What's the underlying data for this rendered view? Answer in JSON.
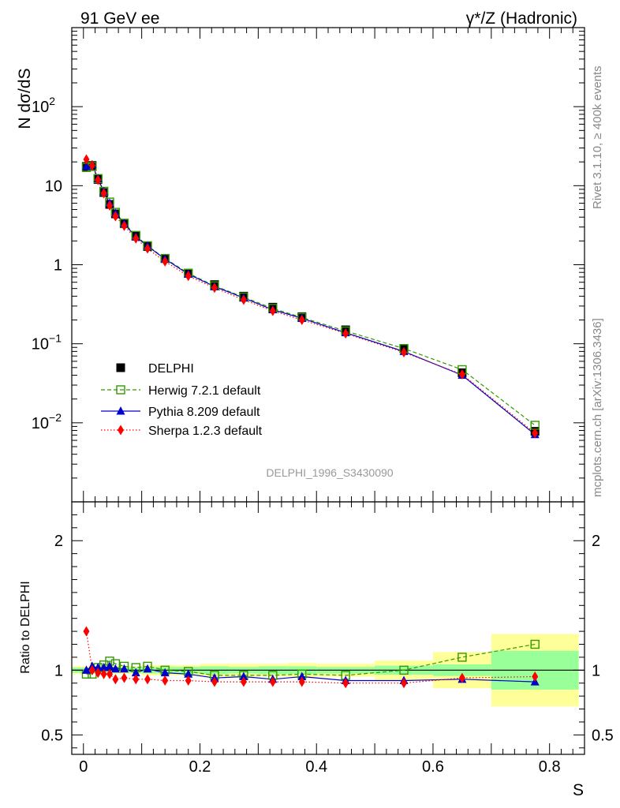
{
  "header": {
    "left": "91 GeV ee",
    "right": "γ*/Z (Hadronic)"
  },
  "side_labels": {
    "rivet": "Rivet 3.1.10, ≥ 400k events",
    "mcplots": "mcplots.cern.ch [arXiv:1306.3436]"
  },
  "analysis_id": "DELPHI_1996_S3430090",
  "chart_data": [
    {
      "type": "scatter",
      "panel": "main",
      "ylabel": "N dσ/dS",
      "xlabel": "S",
      "xlim": [
        -0.02,
        0.86
      ],
      "ylim": [
        0.001,
        1000
      ],
      "yscale": "log",
      "yticks": [
        {
          "value": 0.01,
          "base": "10",
          "exp": "−2"
        },
        {
          "value": 0.1,
          "base": "10",
          "exp": "−1"
        },
        {
          "value": 1,
          "base": "1",
          "exp": ""
        },
        {
          "value": 10,
          "base": "10",
          "exp": ""
        },
        {
          "value": 100,
          "base": "10",
          "exp": "2"
        }
      ],
      "legend_position": "bottom-left",
      "x": [
        0.005,
        0.015,
        0.025,
        0.035,
        0.045,
        0.055,
        0.07,
        0.09,
        0.11,
        0.14,
        0.18,
        0.225,
        0.275,
        0.325,
        0.375,
        0.45,
        0.55,
        0.65,
        0.775
      ],
      "series": [
        {
          "name": "DELPHI",
          "style": "data",
          "color": "#000000",
          "values": [
            17.5,
            18.0,
            12.0,
            8.2,
            5.8,
            4.4,
            3.3,
            2.3,
            1.7,
            1.2,
            0.78,
            0.56,
            0.4,
            0.29,
            0.22,
            0.15,
            0.087,
            0.043,
            0.0078
          ]
        },
        {
          "name": "Herwig 7.2.1 default",
          "style": "open-square-dashed",
          "color": "#339900",
          "values": [
            17.0,
            17.5,
            12.3,
            8.5,
            6.2,
            4.6,
            3.35,
            2.35,
            1.74,
            1.2,
            0.78,
            0.54,
            0.39,
            0.28,
            0.215,
            0.145,
            0.087,
            0.047,
            0.0093
          ]
        },
        {
          "name": "Pythia 8.209 default",
          "style": "filled-triangle-solid",
          "color": "#0000cc",
          "values": [
            17.5,
            18.5,
            12.3,
            8.4,
            6.0,
            4.45,
            3.3,
            2.25,
            1.72,
            1.18,
            0.76,
            0.53,
            0.38,
            0.27,
            0.21,
            0.138,
            0.08,
            0.04,
            0.0071
          ]
        },
        {
          "name": "Sherpa 1.2.3 default",
          "style": "filled-diamond-dotted",
          "color": "#ff0000",
          "values": [
            21.5,
            18.0,
            11.8,
            8.0,
            5.6,
            4.1,
            3.1,
            2.15,
            1.6,
            1.1,
            0.72,
            0.51,
            0.36,
            0.26,
            0.2,
            0.135,
            0.078,
            0.041,
            0.0074
          ]
        }
      ]
    },
    {
      "type": "scatter",
      "panel": "ratio",
      "ylabel": "Ratio to DELPHI",
      "xlabel": "S",
      "xlim": [
        -0.02,
        0.86
      ],
      "ylim": [
        0.35,
        2.3
      ],
      "yticks": [
        0.5,
        1,
        2
      ],
      "xticks": [
        0,
        0.2,
        0.4,
        0.6,
        0.8
      ],
      "reference_line": 1,
      "uncertainty_bands": [
        {
          "x_from": -0.02,
          "x_to": 0.1,
          "green": 0.02,
          "yellow": 0.03
        },
        {
          "x_from": 0.1,
          "x_to": 0.2,
          "green": 0.025,
          "yellow": 0.04
        },
        {
          "x_from": 0.2,
          "x_to": 0.25,
          "green": 0.03,
          "yellow": 0.05
        },
        {
          "x_from": 0.25,
          "x_to": 0.3,
          "green": 0.025,
          "yellow": 0.05
        },
        {
          "x_from": 0.3,
          "x_to": 0.35,
          "green": 0.03,
          "yellow": 0.05
        },
        {
          "x_from": 0.35,
          "x_to": 0.4,
          "green": 0.03,
          "yellow": 0.055
        },
        {
          "x_from": 0.4,
          "x_to": 0.5,
          "green": 0.025,
          "yellow": 0.05
        },
        {
          "x_from": 0.5,
          "x_to": 0.6,
          "green": 0.035,
          "yellow": 0.075
        },
        {
          "x_from": 0.6,
          "x_to": 0.7,
          "green": 0.045,
          "yellow": 0.14
        },
        {
          "x_from": 0.7,
          "x_to": 0.85,
          "green": 0.15,
          "yellow": 0.28
        }
      ],
      "x": [
        0.005,
        0.015,
        0.025,
        0.035,
        0.045,
        0.055,
        0.07,
        0.09,
        0.11,
        0.14,
        0.18,
        0.225,
        0.275,
        0.325,
        0.375,
        0.45,
        0.55,
        0.65,
        0.775
      ],
      "series": [
        {
          "name": "Herwig 7.2.1 default",
          "style": "open-square-dashed",
          "color": "#339900",
          "values": [
            0.97,
            0.97,
            1.02,
            1.04,
            1.07,
            1.05,
            1.03,
            1.02,
            1.03,
            1.0,
            0.99,
            0.96,
            0.96,
            0.96,
            0.97,
            0.96,
            1.0,
            1.1,
            1.2
          ]
        },
        {
          "name": "Pythia 8.209 default",
          "style": "filled-triangle-solid",
          "color": "#0000cc",
          "values": [
            1.0,
            1.03,
            1.02,
            1.02,
            1.03,
            1.01,
            1.01,
            0.98,
            1.01,
            0.98,
            0.97,
            0.94,
            0.95,
            0.93,
            0.95,
            0.92,
            0.92,
            0.93,
            0.91
          ]
        },
        {
          "name": "Sherpa 1.2.3 default",
          "style": "filled-diamond-dotted",
          "color": "#ff0000",
          "values": [
            1.3,
            1.0,
            0.98,
            0.97,
            0.97,
            0.93,
            0.94,
            0.93,
            0.93,
            0.92,
            0.92,
            0.91,
            0.91,
            0.91,
            0.91,
            0.9,
            0.9,
            0.94,
            0.95
          ]
        }
      ]
    }
  ]
}
